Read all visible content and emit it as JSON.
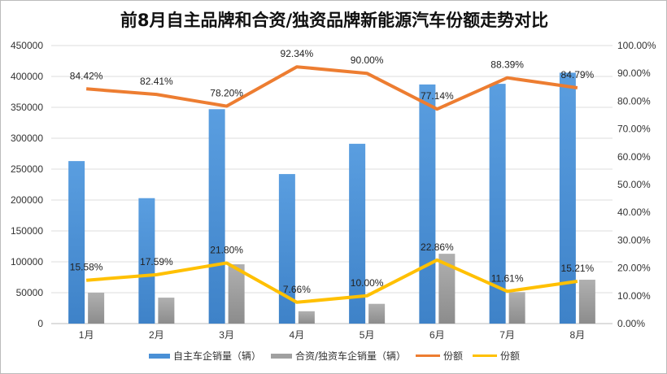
{
  "chart_data": {
    "type": "bar+line",
    "title": "前8月自主品牌和合资/独资品牌新能源汽车份额走势对比",
    "categories": [
      "1月",
      "2月",
      "3月",
      "4月",
      "5月",
      "6月",
      "7月",
      "8月"
    ],
    "left_axis": {
      "range": [
        0,
        450000
      ],
      "ticks": [
        "0",
        "50000",
        "100000",
        "150000",
        "200000",
        "250000",
        "300000",
        "350000",
        "400000",
        "450000"
      ]
    },
    "right_axis": {
      "range": [
        0,
        100
      ],
      "ticks": [
        "0.00%",
        "10.00%",
        "20.00%",
        "30.00%",
        "40.00%",
        "50.00%",
        "60.00%",
        "70.00%",
        "80.00%",
        "90.00%",
        "100.00%"
      ]
    },
    "grid": true,
    "legend_position": "bottom",
    "series": [
      {
        "name": "自主车企销量（辆）",
        "type": "bar",
        "axis": "left",
        "color": "#4a90d6",
        "values": [
          263000,
          203000,
          347000,
          242000,
          291000,
          387000,
          388000,
          406000
        ]
      },
      {
        "name": "合资/独资车企销量（辆）",
        "type": "bar",
        "axis": "left",
        "color": "#a0a0a0",
        "values": [
          50000,
          42000,
          96000,
          20000,
          32000,
          113000,
          51000,
          71000
        ]
      },
      {
        "name": "份额",
        "type": "line",
        "axis": "right",
        "color": "#ed7d31",
        "values": [
          84.42,
          82.41,
          78.2,
          92.34,
          90.0,
          77.14,
          88.39,
          84.79
        ],
        "labels": [
          "84.42%",
          "82.41%",
          "78.20%",
          "92.34%",
          "90.00%",
          "77.14%",
          "88.39%",
          "84.79%"
        ]
      },
      {
        "name": "份额",
        "type": "line",
        "axis": "right",
        "color": "#ffc000",
        "values": [
          15.58,
          17.59,
          21.8,
          7.66,
          10.0,
          22.86,
          11.61,
          15.21
        ],
        "labels": [
          "15.58%",
          "17.59%",
          "21.80%",
          "7.66%",
          "10.00%",
          "22.86%",
          "11.61%",
          "15.21%"
        ]
      }
    ]
  }
}
